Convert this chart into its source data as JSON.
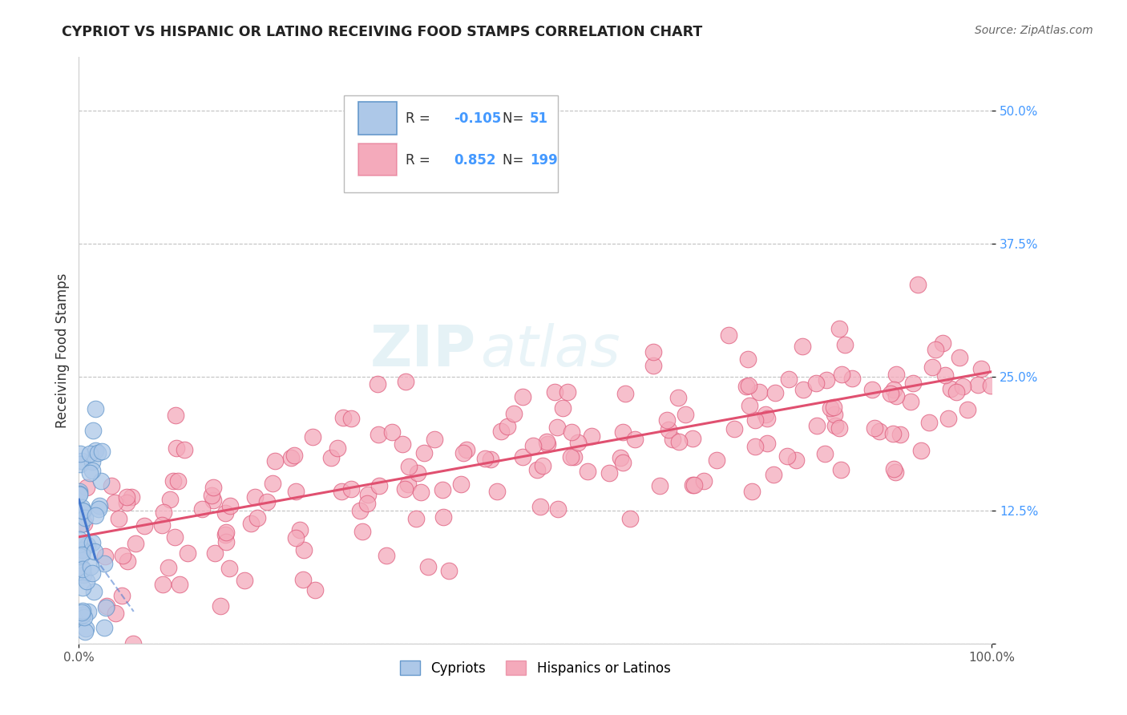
{
  "title": "CYPRIOT VS HISPANIC OR LATINO RECEIVING FOOD STAMPS CORRELATION CHART",
  "source": "Source: ZipAtlas.com",
  "ylabel": "Receiving Food Stamps",
  "xlim": [
    0,
    100
  ],
  "ylim": [
    0,
    55
  ],
  "yticks": [
    0,
    12.5,
    25.0,
    37.5,
    50.0
  ],
  "ytick_labels": [
    "",
    "12.5%",
    "25.0%",
    "37.5%",
    "50.0%"
  ],
  "xtick_labels": [
    "0.0%",
    "100.0%"
  ],
  "cypriot_color": "#adc8e8",
  "cypriot_edge": "#6699cc",
  "hispanic_color": "#f4aabb",
  "hispanic_edge": "#e0608080",
  "line_cypriot_color": "#4477cc",
  "line_hispanic_color": "#e05070",
  "watermark_zip": "ZIP",
  "watermark_atlas": "atlas",
  "background_color": "#ffffff",
  "grid_color": "#bbbbbb",
  "cypriot_R": -0.105,
  "cypriot_N": 51,
  "hispanic_R": 0.852,
  "hispanic_N": 199,
  "title_color": "#222222",
  "source_color": "#666666",
  "ylabel_color": "#333333",
  "ytick_color": "#4499ff",
  "xtick_color": "#555555",
  "legend_R_color": "#333333",
  "legend_val_color": "#4499ff"
}
